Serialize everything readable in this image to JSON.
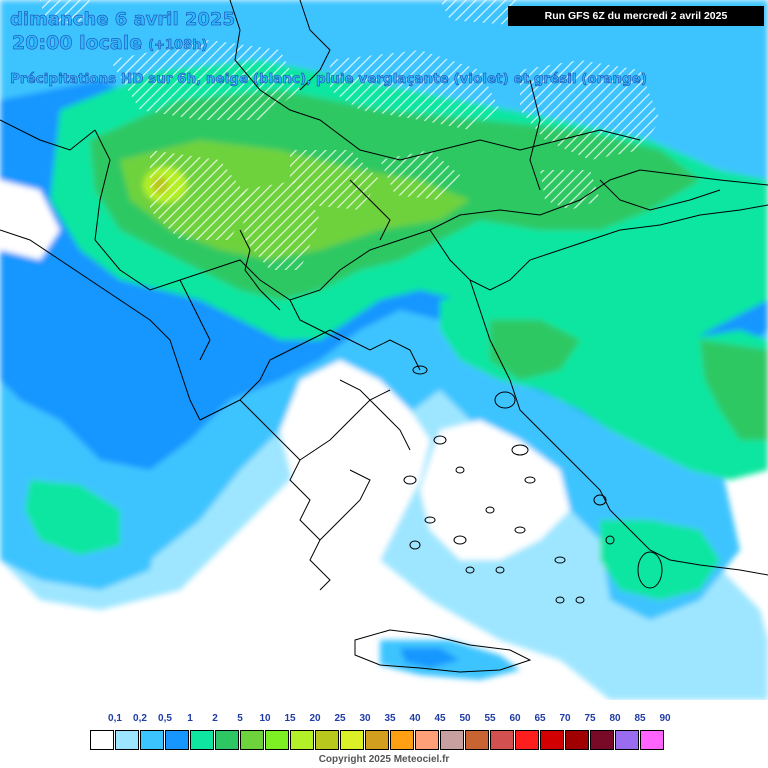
{
  "header": {
    "date": "dimanche 6 avril 2025",
    "time": "20:00 locale",
    "lead_time": "(+108h)",
    "description": "Précipitations HD sur 6h, neige (blanc), pluie verglaçante (violet) et grésil (orange)"
  },
  "run_info": "Run GFS 6Z du mercredi 2 avril 2025",
  "legend": {
    "labels": [
      "0,1",
      "0,2",
      "0,5",
      "1",
      "2",
      "5",
      "10",
      "15",
      "20",
      "25",
      "30",
      "35",
      "40",
      "45",
      "50",
      "55",
      "60",
      "65",
      "70",
      "75",
      "80",
      "85",
      "90"
    ],
    "colors": [
      "#ffffff",
      "#9ee6ff",
      "#3cc4ff",
      "#1896ff",
      "#0fe6a0",
      "#2dc864",
      "#6ed23c",
      "#7cf022",
      "#b4f028",
      "#b8c81c",
      "#dcf028",
      "#d2a01e",
      "#ffa014",
      "#ffa078",
      "#c8a0a0",
      "#c86432",
      "#d25050",
      "#ff1e1e",
      "#d20000",
      "#a00000",
      "#780a28",
      "#9a6cf0",
      "#ff64ff"
    ]
  },
  "map": {
    "fields": {
      "no_precip": "#ffffff",
      "very_light": "#9ee6ff",
      "light": "#3cc4ff",
      "moderate": "#1896ff",
      "green_light": "#0fe6a0",
      "green": "#2dc864",
      "green_strong": "#6ed23c",
      "yellow_green": "#b4f028",
      "olive": "#b8c81c"
    },
    "snow_hatch": "#ffffff",
    "borders": "#000000"
  },
  "copyright": "Copyright 2025 Meteociel.fr"
}
